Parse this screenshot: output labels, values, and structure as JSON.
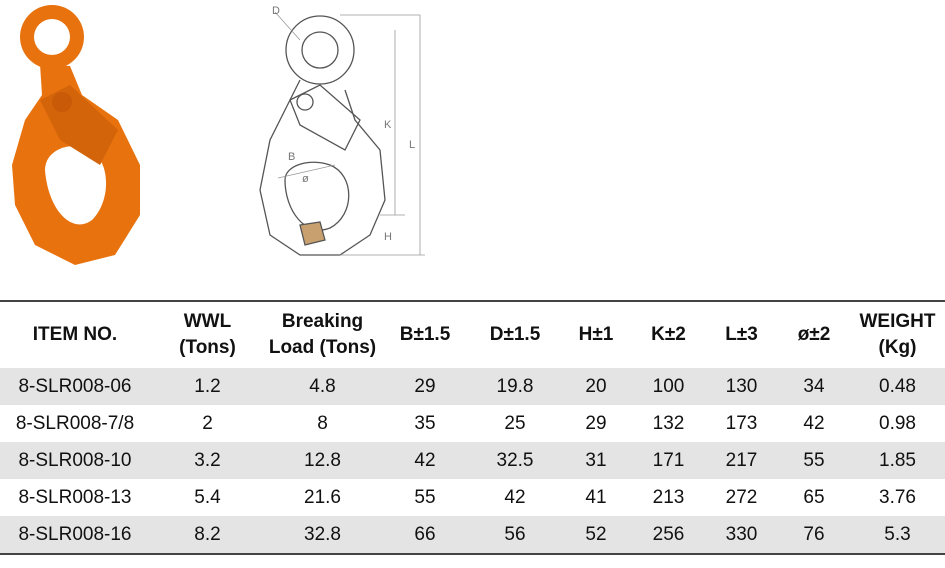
{
  "diagram": {
    "labels": [
      "D",
      "B",
      "ø",
      "K",
      "L",
      "H"
    ]
  },
  "table": {
    "headers": [
      [
        "ITEM NO."
      ],
      [
        "WWL",
        "(Tons)"
      ],
      [
        "Breaking",
        "Load (Tons)"
      ],
      [
        "B±1.5"
      ],
      [
        "D±1.5"
      ],
      [
        "H±1"
      ],
      [
        "K±2"
      ],
      [
        "L±3"
      ],
      [
        "ø±2"
      ],
      [
        "WEIGHT",
        "(Kg)"
      ]
    ],
    "rows": [
      [
        "8-SLR008-06",
        "1.2",
        "4.8",
        "29",
        "19.8",
        "20",
        "100",
        "130",
        "34",
        "0.48"
      ],
      [
        "8-SLR008-7/8",
        "2",
        "8",
        "35",
        "25",
        "29",
        "132",
        "173",
        "42",
        "0.98"
      ],
      [
        "8-SLR008-10",
        "3.2",
        "12.8",
        "42",
        "32.5",
        "31",
        "171",
        "217",
        "55",
        "1.85"
      ],
      [
        "8-SLR008-13",
        "5.4",
        "21.6",
        "55",
        "42",
        "41",
        "213",
        "272",
        "65",
        "3.76"
      ],
      [
        "8-SLR008-16",
        "8.2",
        "32.8",
        "66",
        "56",
        "52",
        "256",
        "330",
        "76",
        "5.3"
      ]
    ]
  }
}
